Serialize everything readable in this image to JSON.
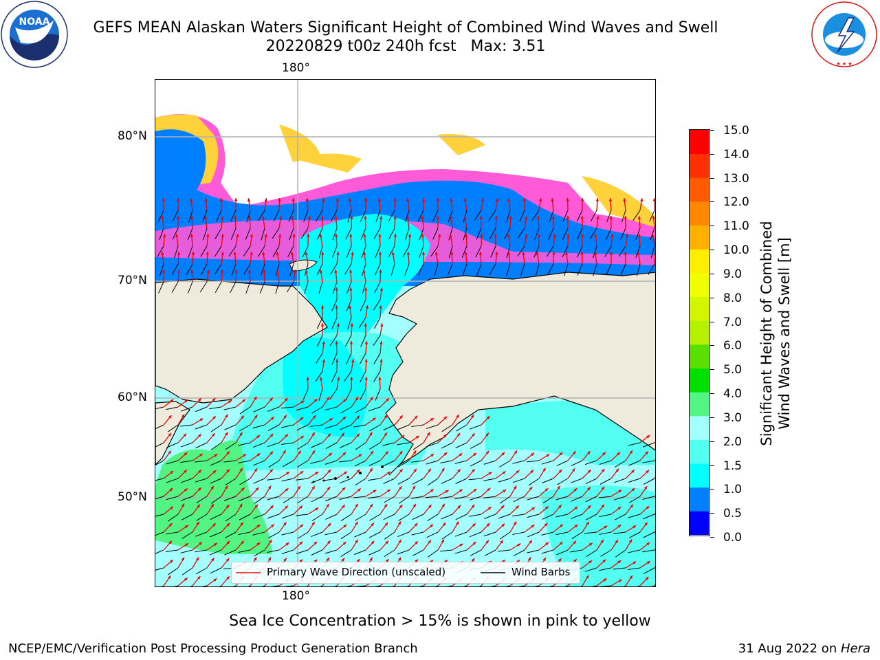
{
  "header": {
    "title_line1": "GEFS MEAN Alaskan Waters Significant Height of Combined Wind Waves and Swell",
    "title_line2": "20220829 t00z 240h fcst   Max: 3.51"
  },
  "logos": {
    "left": {
      "name": "noaa-logo",
      "text": "NOAA",
      "ring_text": "NATIONAL OCEANIC AND ATMOSPHERIC ADMINISTRATION · U.S. DEPARTMENT OF COMMERCE"
    },
    "right": {
      "name": "nws-logo",
      "ring_text": "NATIONAL WEATHER SERVICE"
    }
  },
  "map": {
    "lon_top": "180°",
    "lon_bottom": "180°",
    "lat_labels": [
      "80°N",
      "70°N",
      "60°N",
      "50°N"
    ],
    "colors": {
      "land": "#efebdc",
      "ice_high": "#ffd23c",
      "ice_mid": "#ff5ad8",
      "wave_0_5": "#0000ff",
      "wave_1_0": "#007fff",
      "wave_1_5": "#00ffff",
      "wave_2_0": "#52fff0",
      "wave_3_0": "#a4ffff",
      "wave_4_0": "#52f584"
    },
    "legend": {
      "wave_dir_label": "Primary Wave Direction (unscaled)",
      "wind_barbs_label": "Wind Barbs"
    }
  },
  "colorbar": {
    "ticks": [
      "15.0",
      "14.0",
      "13.0",
      "12.0",
      "11.0",
      "10.0",
      "9.0",
      "8.0",
      "7.0",
      "6.0",
      "5.0",
      "4.0",
      "3.0",
      "2.0",
      "1.5",
      "1.0",
      "0.5",
      "0.0"
    ],
    "colors_bottom_to_top": [
      "#0000ff",
      "#007fff",
      "#00ffff",
      "#52fff0",
      "#a4ffff",
      "#52f584",
      "#00e000",
      "#5ae000",
      "#b4f000",
      "#d4f500",
      "#f0ff00",
      "#ffee00",
      "#ffb000",
      "#ff8800",
      "#ff5a00",
      "#ff3000",
      "#ff0000"
    ],
    "label_line1": "Significant Height of Combined",
    "label_line2": "Wind Waves and Swell [m]"
  },
  "subtitle": "Sea Ice Concentration > 15% is shown in pink to yellow",
  "footer": {
    "left": "NCEP/EMC/Verification Post Processing Product Generation Branch",
    "right_date": "31 Aug 2022 on ",
    "right_host": "Hera"
  }
}
